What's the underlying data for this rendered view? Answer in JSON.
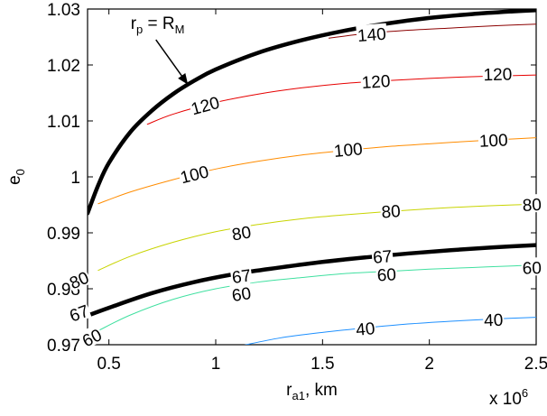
{
  "chart_data": {
    "type": "line",
    "xlabel": "r",
    "xlabel_sub": "a1",
    "xlabel_suffix": ", km",
    "ylabel": "e",
    "ylabel_sub": "0",
    "x_multiplier": "x 10",
    "x_multiplier_exp": "6",
    "xlim": [
      0.4,
      2.5
    ],
    "ylim": [
      0.97,
      1.03
    ],
    "xticks": [
      "0.5",
      "1",
      "1.5",
      "2",
      "2.5"
    ],
    "xtick_values": [
      0.5,
      1.0,
      1.5,
      2.0,
      2.5
    ],
    "yticks": [
      "0.97",
      "0.98",
      "0.99",
      "1",
      "1.01",
      "1.02",
      "1.03"
    ],
    "ytick_values": [
      0.97,
      0.98,
      0.99,
      1.0,
      1.01,
      1.02,
      1.03
    ],
    "grid": false,
    "legend": "none",
    "annotation": {
      "text": "r",
      "sub": "p",
      "middle": " = R",
      "sub2": "M",
      "arrow_from": [
        0.72,
        1.0245
      ],
      "arrow_to": [
        0.87,
        1.0165
      ]
    },
    "series": [
      {
        "label": "140",
        "color": "#8b0000",
        "width": 1,
        "x": [
          1.53,
          1.7,
          1.9,
          2.1,
          2.3,
          2.5
        ],
        "y": [
          1.0248,
          1.0256,
          1.0262,
          1.0266,
          1.027,
          1.0273
        ],
        "labels_at": [
          {
            "x": 1.73,
            "y": 1.0255
          }
        ]
      },
      {
        "label": "120",
        "color": "#e60000",
        "width": 1,
        "x": [
          0.68,
          0.8,
          1.0,
          1.2,
          1.4,
          1.6,
          1.8,
          2.0,
          2.2,
          2.4,
          2.5
        ],
        "y": [
          1.0094,
          1.0112,
          1.0133,
          1.0148,
          1.0159,
          1.0167,
          1.0172,
          1.0176,
          1.0179,
          1.0181,
          1.0182
        ],
        "labels_at": [
          {
            "x": 0.95,
            "y": 1.0128
          },
          {
            "x": 1.75,
            "y": 1.0171
          },
          {
            "x": 2.32,
            "y": 1.0184
          }
        ]
      },
      {
        "label": "100",
        "color": "#ff8c00",
        "width": 1,
        "x": [
          0.45,
          0.6,
          0.8,
          1.0,
          1.2,
          1.4,
          1.6,
          1.8,
          2.0,
          2.2,
          2.4,
          2.5
        ],
        "y": [
          0.9952,
          0.9973,
          0.9995,
          1.0014,
          1.0028,
          1.0039,
          1.0047,
          1.0054,
          1.0059,
          1.0064,
          1.0068,
          1.007
        ],
        "labels_at": [
          {
            "x": 0.9,
            "y": 1.0005
          },
          {
            "x": 1.62,
            "y": 1.0049
          },
          {
            "x": 2.3,
            "y": 1.0066
          }
        ]
      },
      {
        "label": "80",
        "color": "#c8d400",
        "width": 1,
        "x": [
          0.45,
          0.6,
          0.8,
          1.0,
          1.2,
          1.4,
          1.6,
          1.8,
          2.0,
          2.2,
          2.4,
          2.5
        ],
        "y": [
          0.9833,
          0.9858,
          0.9883,
          0.9902,
          0.9915,
          0.9925,
          0.9932,
          0.9938,
          0.9943,
          0.9947,
          0.995,
          0.9952
        ],
        "labels_at": [
          {
            "x": 0.36,
            "y": 0.9816
          },
          {
            "x": 1.12,
            "y": 0.99
          },
          {
            "x": 1.82,
            "y": 0.9939
          },
          {
            "x": 2.48,
            "y": 0.9951
          }
        ]
      },
      {
        "label": "67",
        "color": "#000000",
        "width": 4.5,
        "x": [
          0.4,
          0.5,
          0.7,
          0.9,
          1.1,
          1.3,
          1.5,
          1.7,
          1.9,
          2.1,
          2.3,
          2.5
        ],
        "y": [
          0.9752,
          0.9766,
          0.9792,
          0.9812,
          0.9827,
          0.9838,
          0.9848,
          0.9856,
          0.9863,
          0.9869,
          0.9874,
          0.9878
        ],
        "labels_at": [
          {
            "x": 0.36,
            "y": 0.9757
          },
          {
            "x": 1.12,
            "y": 0.9823
          },
          {
            "x": 1.78,
            "y": 0.9858
          }
        ]
      },
      {
        "label": "60",
        "color": "#40e0a0",
        "width": 1,
        "x": [
          0.45,
          0.6,
          0.8,
          1.0,
          1.2,
          1.4,
          1.6,
          1.8,
          2.0,
          2.2,
          2.4,
          2.5
        ],
        "y": [
          0.9725,
          0.9753,
          0.9781,
          0.98,
          0.9812,
          0.982,
          0.9827,
          0.9831,
          0.9835,
          0.9838,
          0.9841,
          0.9842
        ],
        "labels_at": [
          {
            "x": 0.42,
            "y": 0.9713
          },
          {
            "x": 1.12,
            "y": 0.9791
          },
          {
            "x": 1.8,
            "y": 0.9826
          },
          {
            "x": 2.48,
            "y": 0.9838
          }
        ]
      },
      {
        "label": "40",
        "color": "#1e90ff",
        "width": 1,
        "x": [
          1.13,
          1.3,
          1.5,
          1.7,
          1.9,
          2.1,
          2.3,
          2.5
        ],
        "y": [
          0.9699,
          0.9712,
          0.9722,
          0.973,
          0.9737,
          0.9742,
          0.9746,
          0.9749
        ],
        "labels_at": [
          {
            "x": 1.7,
            "y": 0.9729
          },
          {
            "x": 2.3,
            "y": 0.9745
          }
        ]
      },
      {
        "label": "",
        "color": "#000000",
        "width": 4.5,
        "x": [
          0.4,
          0.45,
          0.5,
          0.6,
          0.7,
          0.8,
          0.9,
          1.0,
          1.2,
          1.4,
          1.6,
          1.8,
          2.0,
          2.2,
          2.4,
          2.5
        ],
        "y": [
          0.9935,
          0.9985,
          1.0025,
          1.008,
          1.0118,
          1.0148,
          1.0172,
          1.0192,
          1.0222,
          1.0244,
          1.0261,
          1.0274,
          1.0284,
          1.0291,
          1.0296,
          1.0298
        ],
        "labels_at": []
      }
    ]
  }
}
